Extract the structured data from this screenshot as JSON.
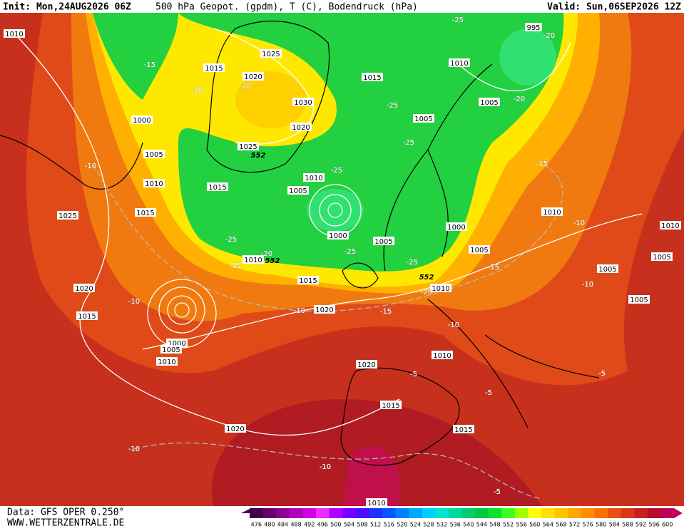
{
  "header": {
    "init": "Init: Mon,24AUG2026 06Z",
    "title": "500 hPa Geopot. (gpdm), T (C), Bodendruck (hPa)",
    "valid": "Valid: Sun,06SEP2026 12Z"
  },
  "footer": {
    "source": "Data: GFS OPER 0.250°",
    "site": "WWW.WETTERZENTRALE.DE"
  },
  "colorbar": {
    "values": [
      476,
      480,
      484,
      488,
      492,
      496,
      500,
      504,
      508,
      512,
      516,
      520,
      524,
      528,
      532,
      536,
      540,
      544,
      548,
      552,
      556,
      560,
      564,
      568,
      572,
      576,
      580,
      584,
      588,
      592,
      596,
      600
    ],
    "colors": [
      "#40004a",
      "#68006c",
      "#8c0090",
      "#b000b8",
      "#d000e0",
      "#e830ff",
      "#b000ff",
      "#7a00ff",
      "#4a10ff",
      "#2030ff",
      "#0058ff",
      "#0080ff",
      "#00a8ff",
      "#00d0ff",
      "#00e4d0",
      "#00d8a0",
      "#00cc70",
      "#00c840",
      "#10e030",
      "#40ff20",
      "#a0ff00",
      "#ffff00",
      "#ffe000",
      "#ffc400",
      "#ffa800",
      "#ff9000",
      "#f87000",
      "#e85010",
      "#d83818",
      "#c82020",
      "#b01028",
      "#c00058"
    ]
  },
  "pressure_labels": [
    1010,
    1025,
    1015,
    1020,
    1030,
    1020,
    1025,
    1000,
    1005,
    1010,
    1015,
    1015,
    1025,
    1010,
    1005,
    1000,
    1005,
    1005,
    1015,
    1005,
    1010,
    995,
    1000,
    1005,
    1010,
    1010,
    1005,
    1005,
    1005,
    1015,
    1020,
    1010,
    1020,
    1015,
    1000,
    1005,
    1010,
    1010,
    1010,
    1020,
    1015,
    1015,
    1020,
    1010
  ],
  "temperature_labels": [
    -15,
    -20,
    -20,
    -25,
    -25,
    -25,
    -25,
    -25,
    -25,
    -25,
    -20,
    -20,
    -10,
    -15,
    -15,
    -20,
    -15,
    -20,
    -10,
    -10,
    -15,
    -10,
    -10,
    -10,
    -5,
    -5,
    -5,
    -10,
    -10,
    -5
  ],
  "geopotential_labels": [
    552,
    552,
    552
  ]
}
